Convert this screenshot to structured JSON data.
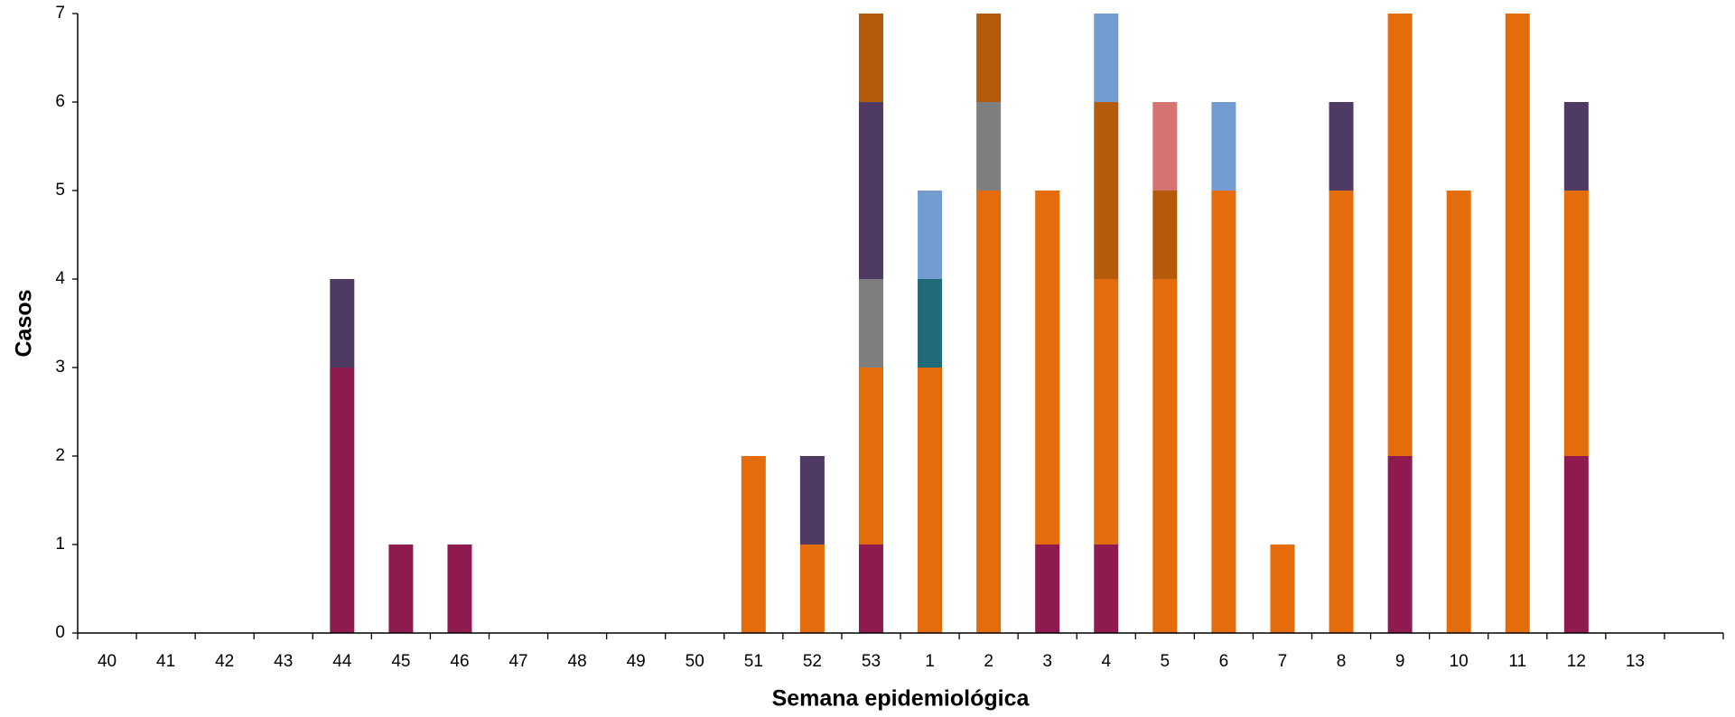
{
  "chart_data": {
    "type": "stacked_bar",
    "x_label": "Semana epidemiológica",
    "y_label": "Casos",
    "categories": [
      "40",
      "41",
      "42",
      "43",
      "44",
      "45",
      "46",
      "47",
      "48",
      "49",
      "50",
      "51",
      "52",
      "53",
      "1",
      "2",
      "3",
      "4",
      "5",
      "6",
      "7",
      "8",
      "9",
      "10",
      "11",
      "12",
      "13"
    ],
    "ylim": [
      0,
      7
    ],
    "yticks": [
      0,
      1,
      2,
      3,
      4,
      5,
      6,
      7
    ],
    "series": [
      {
        "color": "#8e1a50",
        "values": [
          0,
          0,
          0,
          0,
          3,
          1,
          1,
          0,
          0,
          0,
          0,
          0,
          0,
          1,
          0,
          0,
          1,
          1,
          0,
          0,
          0,
          0,
          2,
          0,
          0,
          2,
          0
        ]
      },
      {
        "color": "#e46c0a",
        "values": [
          0,
          0,
          0,
          0,
          0,
          0,
          0,
          0,
          0,
          0,
          0,
          2,
          1,
          2,
          3,
          5,
          4,
          3,
          4,
          5,
          1,
          5,
          5,
          5,
          7,
          3,
          0
        ]
      },
      {
        "color": "#216a78",
        "values": [
          0,
          0,
          0,
          0,
          0,
          0,
          0,
          0,
          0,
          0,
          0,
          0,
          0,
          0,
          1,
          0,
          0,
          0,
          0,
          0,
          0,
          0,
          0,
          0,
          0,
          0,
          0
        ]
      },
      {
        "color": "#7f7f7f",
        "values": [
          0,
          0,
          0,
          0,
          0,
          0,
          0,
          0,
          0,
          0,
          0,
          0,
          0,
          1,
          0,
          1,
          0,
          0,
          0,
          0,
          0,
          0,
          0,
          0,
          0,
          0,
          0
        ]
      },
      {
        "color": "#4f3a63",
        "values": [
          0,
          0,
          0,
          0,
          1,
          0,
          0,
          0,
          0,
          0,
          0,
          0,
          1,
          2,
          0,
          0,
          0,
          0,
          0,
          0,
          0,
          1,
          0,
          0,
          0,
          1,
          0
        ]
      },
      {
        "color": "#b55a0b",
        "values": [
          0,
          0,
          0,
          0,
          0,
          0,
          0,
          0,
          0,
          0,
          0,
          0,
          0,
          1,
          0,
          1,
          0,
          2,
          1,
          0,
          0,
          0,
          0,
          0,
          0,
          0,
          0
        ]
      },
      {
        "color": "#739dd0",
        "values": [
          0,
          0,
          0,
          0,
          0,
          0,
          0,
          0,
          0,
          0,
          0,
          0,
          0,
          0,
          1,
          0,
          0,
          1,
          0,
          1,
          0,
          0,
          0,
          0,
          0,
          0,
          0
        ]
      },
      {
        "color": "#d47370",
        "values": [
          0,
          0,
          0,
          0,
          0,
          0,
          0,
          0,
          0,
          0,
          0,
          0,
          0,
          0,
          0,
          0,
          0,
          0,
          1,
          0,
          0,
          0,
          0,
          0,
          0,
          0,
          0
        ]
      }
    ]
  }
}
